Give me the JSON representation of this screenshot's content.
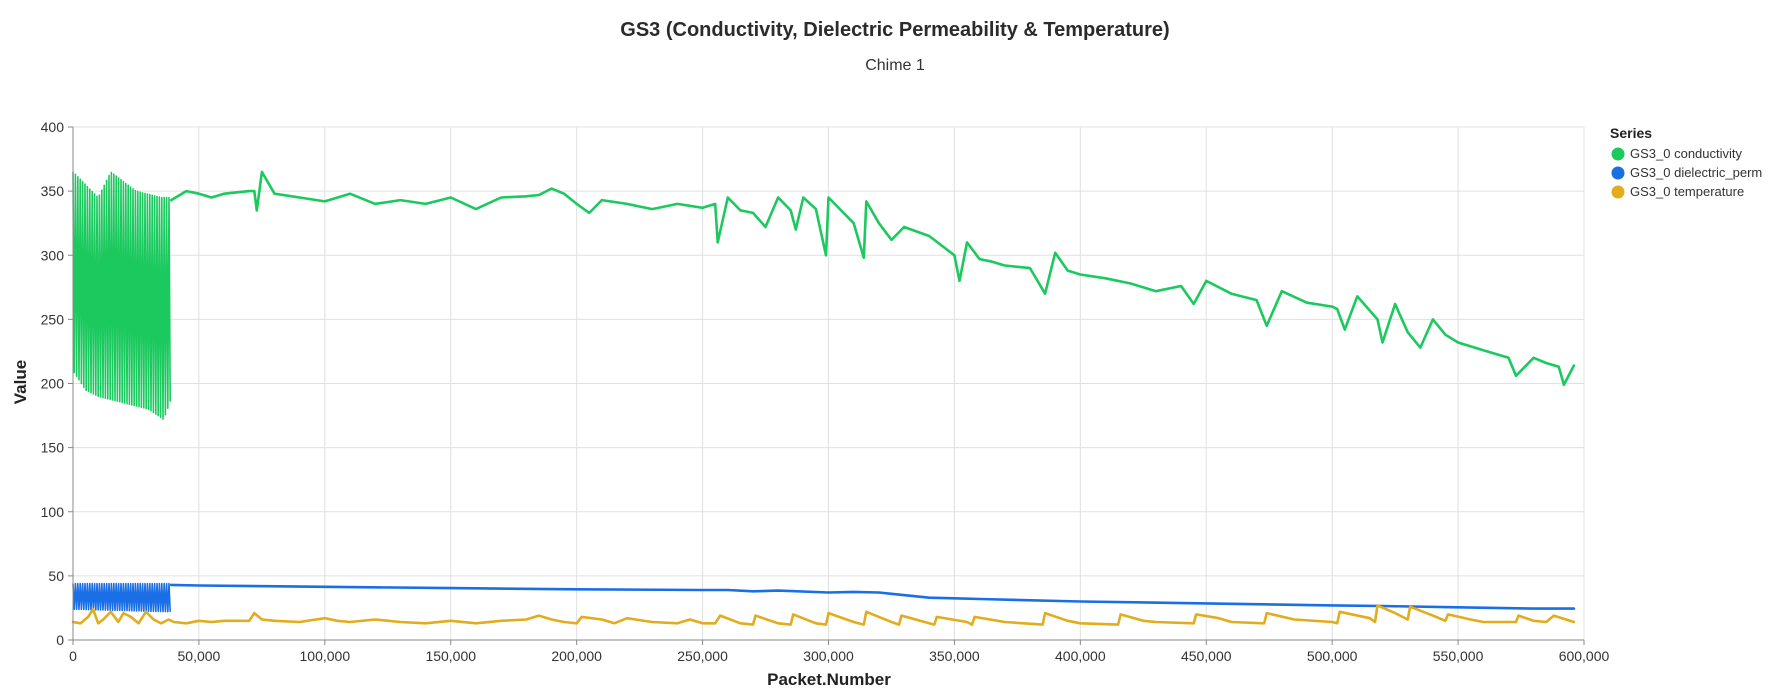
{
  "chart_data": {
    "type": "line",
    "title": "GS3 (Conductivity, Dielectric Permeability & Temperature)",
    "subtitle": "Chime 1",
    "xlabel": "Packet.Number",
    "ylabel": "Value",
    "xlim": [
      0,
      600000
    ],
    "ylim": [
      0,
      400
    ],
    "x_ticks": [
      0,
      50000,
      100000,
      150000,
      200000,
      250000,
      300000,
      350000,
      400000,
      450000,
      500000,
      550000,
      600000
    ],
    "x_tick_labels": [
      "0",
      "50,000",
      "100,000",
      "150,000",
      "200,000",
      "250,000",
      "300,000",
      "350,000",
      "400,000",
      "450,000",
      "500,000",
      "550,000",
      "600,000"
    ],
    "y_ticks": [
      0,
      50,
      100,
      150,
      200,
      250,
      300,
      350,
      400
    ],
    "y_tick_labels": [
      "0",
      "50",
      "100",
      "150",
      "200",
      "250",
      "300",
      "350",
      "400"
    ],
    "grid": true,
    "legend": {
      "title": "Series",
      "placement": "right"
    },
    "series": [
      {
        "name": "GS3_0 conductivity",
        "color": "#1bc95f",
        "noisy_region": {
          "x": [
            0,
            39000
          ],
          "upper": [
            [
              0,
              365
            ],
            [
              5000,
              355
            ],
            [
              10000,
              345
            ],
            [
              15000,
              365
            ],
            [
              25000,
              350
            ],
            [
              35000,
              345
            ],
            [
              39000,
              345
            ]
          ],
          "lower": [
            [
              0,
              210
            ],
            [
              5000,
              195
            ],
            [
              10000,
              190
            ],
            [
              20000,
              185
            ],
            [
              30000,
              180
            ],
            [
              36000,
              172
            ],
            [
              39000,
              188
            ]
          ]
        },
        "x": [
          39000,
          45000,
          50000,
          55000,
          60000,
          70000,
          72000,
          73000,
          75000,
          80000,
          90000,
          100000,
          110000,
          120000,
          130000,
          140000,
          150000,
          160000,
          170000,
          180000,
          185000,
          190000,
          195000,
          200000,
          205000,
          210000,
          220000,
          230000,
          240000,
          250000,
          255000,
          256000,
          260000,
          265000,
          270000,
          275000,
          280000,
          285000,
          287000,
          290000,
          295000,
          299000,
          300000,
          305000,
          310000,
          314000,
          315000,
          320000,
          325000,
          330000,
          340000,
          350000,
          352000,
          355000,
          360000,
          365000,
          370000,
          380000,
          386000,
          390000,
          395000,
          400000,
          410000,
          420000,
          430000,
          440000,
          445000,
          450000,
          460000,
          470000,
          474000,
          480000,
          490000,
          500000,
          502000,
          505000,
          510000,
          518000,
          520000,
          525000,
          530000,
          535000,
          540000,
          545000,
          550000,
          560000,
          570000,
          573000,
          580000,
          585000,
          590000,
          592000,
          596000
        ],
        "values": [
          343,
          350,
          348,
          345,
          348,
          350,
          350,
          335,
          365,
          348,
          345,
          342,
          348,
          340,
          343,
          340,
          345,
          336,
          345,
          346,
          347,
          352,
          348,
          340,
          333,
          343,
          340,
          336,
          340,
          337,
          340,
          310,
          345,
          335,
          333,
          322,
          345,
          335,
          320,
          345,
          336,
          300,
          345,
          335,
          325,
          298,
          342,
          325,
          312,
          322,
          315,
          300,
          280,
          310,
          297,
          295,
          292,
          290,
          270,
          302,
          288,
          285,
          282,
          278,
          272,
          276,
          262,
          280,
          270,
          265,
          245,
          272,
          263,
          260,
          258,
          242,
          268,
          250,
          232,
          262,
          240,
          228,
          250,
          238,
          232,
          226,
          220,
          206,
          220,
          216,
          213,
          199,
          214
        ]
      },
      {
        "name": "GS3_0 dielectric_perm",
        "color": "#1a6ee6",
        "noisy_region": {
          "x": [
            0,
            39000
          ],
          "upper": [
            [
              0,
              44
            ],
            [
              39000,
              44
            ]
          ],
          "lower": [
            [
              0,
              24
            ],
            [
              39000,
              22
            ]
          ]
        },
        "x": [
          39000,
          50000,
          100000,
          150000,
          200000,
          250000,
          260000,
          270000,
          280000,
          300000,
          310000,
          320000,
          340000,
          350000,
          360000,
          400000,
          450000,
          500000,
          520000,
          550000,
          580000,
          596000
        ],
        "values": [
          43,
          42.5,
          41.5,
          40.5,
          39.5,
          39,
          39,
          38,
          38.5,
          37,
          37.5,
          37,
          33,
          32.5,
          32,
          30,
          28.5,
          27,
          26.5,
          25.5,
          24.5,
          24.5
        ]
      },
      {
        "name": "GS3_0 temperature",
        "color": "#e2ac1d",
        "x": [
          0,
          3000,
          6000,
          8000,
          10000,
          12000,
          15000,
          18000,
          20000,
          23000,
          26000,
          29000,
          32000,
          35000,
          38000,
          40000,
          45000,
          50000,
          55000,
          60000,
          70000,
          72000,
          75000,
          80000,
          90000,
          100000,
          105000,
          110000,
          120000,
          130000,
          140000,
          150000,
          160000,
          170000,
          180000,
          185000,
          190000,
          195000,
          200000,
          202000,
          210000,
          215000,
          220000,
          230000,
          240000,
          245000,
          250000,
          255000,
          257000,
          265000,
          270000,
          271000,
          280000,
          285000,
          286000,
          295000,
          299000,
          300000,
          310000,
          314000,
          315000,
          325000,
          328000,
          329000,
          340000,
          342000,
          343000,
          355000,
          357000,
          358000,
          370000,
          385000,
          386000,
          395000,
          400000,
          415000,
          416000,
          425000,
          430000,
          445000,
          446000,
          455000,
          460000,
          473000,
          474000,
          485000,
          500000,
          502000,
          503000,
          515000,
          517000,
          518000,
          525000,
          530000,
          531000,
          540000,
          545000,
          546000,
          555000,
          560000,
          573000,
          574000,
          580000,
          585000,
          588000,
          596000
        ],
        "values": [
          14,
          13,
          18,
          24,
          13,
          16,
          22,
          14,
          21,
          18,
          13,
          22,
          16,
          13,
          16,
          14,
          13,
          15,
          14,
          15,
          15,
          21,
          16,
          15,
          14,
          17,
          15,
          14,
          16,
          14,
          13,
          15,
          13,
          15,
          16,
          19,
          16,
          14,
          13,
          18,
          16,
          13,
          17,
          14,
          13,
          16,
          13,
          13,
          19,
          13,
          12,
          19,
          13,
          12,
          20,
          13,
          12,
          21,
          14,
          12,
          22,
          14,
          12,
          19,
          13,
          12,
          18,
          14,
          12,
          18,
          14,
          12,
          21,
          15,
          13,
          12,
          20,
          15,
          14,
          13,
          20,
          17,
          14,
          13,
          21,
          16,
          14,
          13,
          22,
          17,
          14,
          27,
          21,
          16,
          26,
          19,
          15,
          20,
          16,
          14,
          14,
          19,
          15,
          14,
          19,
          14
        ]
      }
    ]
  }
}
